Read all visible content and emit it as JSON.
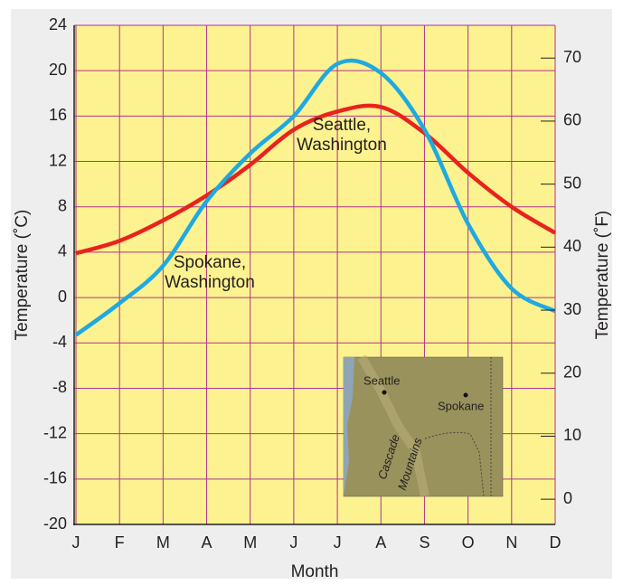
{
  "chart_data": {
    "type": "line",
    "categories": [
      "J",
      "F",
      "M",
      "A",
      "M",
      "J",
      "J",
      "A",
      "S",
      "O",
      "N",
      "D"
    ],
    "series": [
      {
        "name": "Seattle, Washington",
        "color": "#e8231e",
        "values": [
          3.9,
          5.0,
          6.8,
          9.0,
          11.7,
          14.8,
          16.4,
          16.8,
          14.5,
          11.0,
          8.0,
          5.7
        ]
      },
      {
        "name": "Spokane, Washington",
        "color": "#1ea9e1",
        "values": [
          -3.3,
          -0.5,
          2.8,
          8.5,
          12.7,
          16.0,
          20.6,
          19.8,
          14.8,
          6.5,
          0.8,
          -1.2
        ]
      }
    ],
    "ylim": [
      -20,
      24
    ],
    "yticks": [
      -20,
      -16,
      -12,
      -8,
      -4,
      0,
      4,
      8,
      12,
      16,
      20,
      24
    ],
    "y2lim": [
      -4,
      75.2
    ],
    "y2ticks": [
      0,
      10,
      20,
      30,
      40,
      50,
      60,
      70
    ],
    "ylabel": "Temperature (˚C)",
    "y2label": "Temperature (˚F)",
    "xlabel": "Month",
    "grid": true,
    "map_labels": [
      "Seattle",
      "Spokane",
      "Cascade",
      "Mountains"
    ]
  }
}
